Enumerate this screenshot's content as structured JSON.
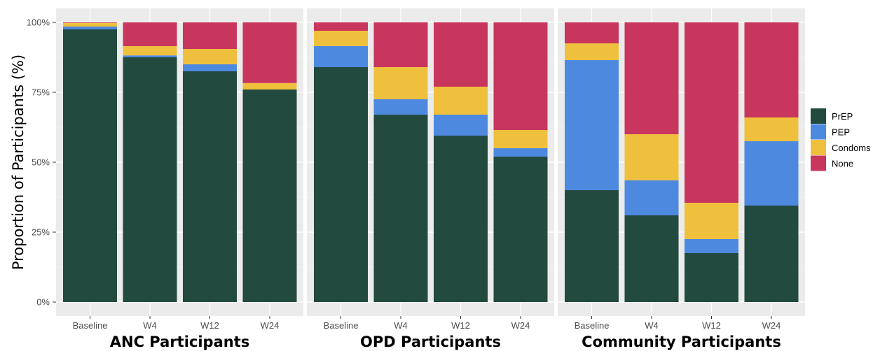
{
  "chart_data": {
    "type": "bar",
    "stacked": true,
    "ylabel": "Proportion of Participants (%)",
    "ylim": [
      0,
      100
    ],
    "y_ticks": [
      "0%",
      "25%",
      "50%",
      "75%",
      "100%"
    ],
    "categories": [
      "Baseline",
      "W4",
      "W12",
      "W24"
    ],
    "series_names": [
      "PrEP",
      "PEP",
      "Condoms",
      "None"
    ],
    "colors": {
      "PrEP": "#234a3f",
      "PEP": "#4e89e0",
      "Condoms": "#efc03e",
      "None": "#c8365e",
      "panel_bg": "#ebebeb",
      "grid": "#ffffff"
    },
    "legend": {
      "position": "right",
      "items": [
        "PrEP",
        "PEP",
        "Condoms",
        "None"
      ]
    },
    "panels": [
      {
        "name": "ANC Participants",
        "series": [
          {
            "name": "PrEP",
            "values": [
              97.5,
              87.5,
              82.5,
              76.0
            ]
          },
          {
            "name": "PEP",
            "values": [
              1.0,
              0.7,
              2.5,
              0.0
            ]
          },
          {
            "name": "Condoms",
            "values": [
              1.3,
              3.3,
              5.5,
              2.3
            ]
          },
          {
            "name": "None",
            "values": [
              0.2,
              8.5,
              9.5,
              21.7
            ]
          }
        ]
      },
      {
        "name": "OPD Participants",
        "series": [
          {
            "name": "PrEP",
            "values": [
              84.0,
              67.0,
              59.5,
              52.0
            ]
          },
          {
            "name": "PEP",
            "values": [
              7.5,
              5.5,
              7.5,
              3.0
            ]
          },
          {
            "name": "Condoms",
            "values": [
              5.5,
              11.5,
              10.0,
              6.5
            ]
          },
          {
            "name": "None",
            "values": [
              3.0,
              16.0,
              23.0,
              38.5
            ]
          }
        ]
      },
      {
        "name": "Community Participants",
        "series": [
          {
            "name": "PrEP",
            "values": [
              40.0,
              31.0,
              17.5,
              34.5
            ]
          },
          {
            "name": "PEP",
            "values": [
              46.5,
              12.5,
              5.0,
              23.0
            ]
          },
          {
            "name": "Condoms",
            "values": [
              6.0,
              16.5,
              13.0,
              8.5
            ]
          },
          {
            "name": "None",
            "values": [
              7.5,
              40.0,
              64.5,
              34.0
            ]
          }
        ]
      }
    ]
  }
}
